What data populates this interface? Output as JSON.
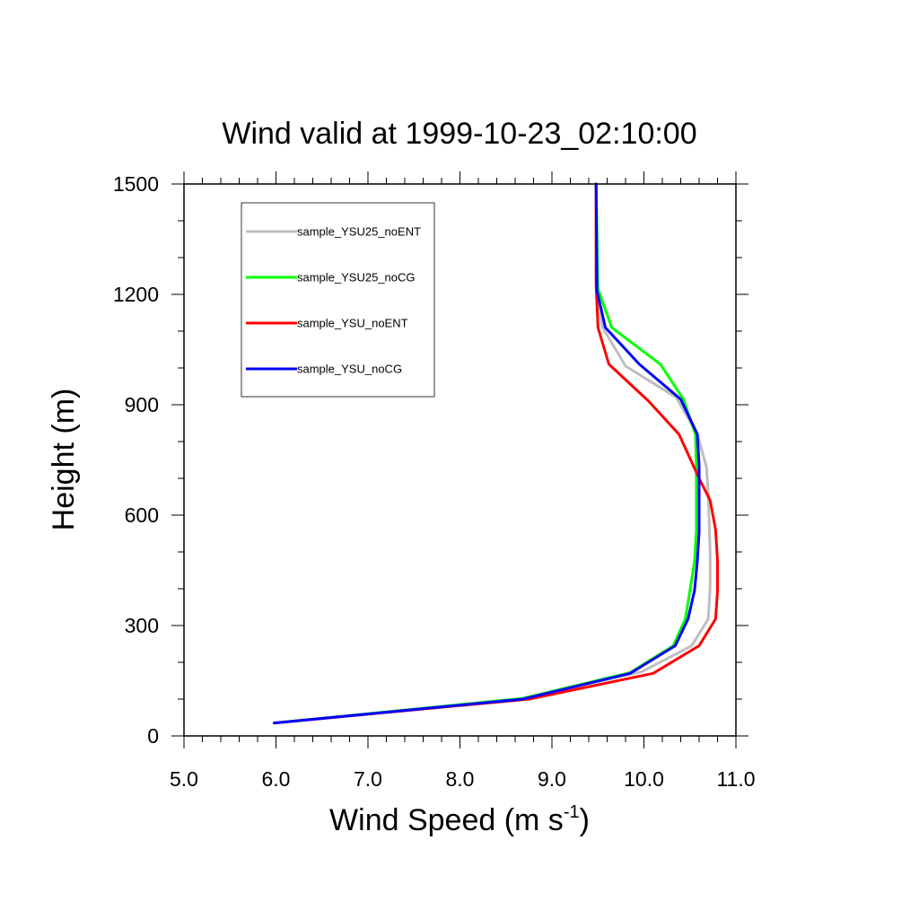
{
  "chart_data": {
    "type": "line",
    "title": "Wind valid at 1999-10-23_02:10:00",
    "xlabel": {
      "base": "Wind Speed (m s",
      "sup": "-1",
      "tail": ")"
    },
    "ylabel": "Height (m)",
    "xlim": [
      5.0,
      11.0
    ],
    "ylim": [
      0,
      1500
    ],
    "xticks": [
      5.0,
      6.0,
      7.0,
      8.0,
      9.0,
      10.0,
      11.0
    ],
    "xtick_labels": [
      "5.0",
      "6.0",
      "7.0",
      "8.0",
      "9.0",
      "10.0",
      "11.0"
    ],
    "yticks": [
      0,
      300,
      600,
      900,
      1200,
      1500
    ],
    "ytick_labels": [
      "0",
      "300",
      "600",
      "900",
      "1200",
      "1500"
    ],
    "grid": false,
    "legend_placement": "top-left",
    "series": [
      {
        "name": "sample_YSU25_noENT",
        "color": "#bebebe",
        "points": [
          [
            5.98,
            35
          ],
          [
            8.7,
            102
          ],
          [
            9.98,
            175
          ],
          [
            10.52,
            245
          ],
          [
            10.7,
            318
          ],
          [
            10.72,
            405
          ],
          [
            10.72,
            495
          ],
          [
            10.71,
            575
          ],
          [
            10.7,
            655
          ],
          [
            10.68,
            730
          ],
          [
            10.58,
            820
          ],
          [
            10.35,
            920
          ],
          [
            9.8,
            1005
          ],
          [
            9.55,
            1110
          ],
          [
            9.48,
            1225
          ],
          [
            9.48,
            1500
          ]
        ]
      },
      {
        "name": "sample_YSU25_noCG",
        "color": "#00ff00",
        "points": [
          [
            5.98,
            35
          ],
          [
            8.68,
            102
          ],
          [
            9.85,
            172
          ],
          [
            10.32,
            245
          ],
          [
            10.45,
            318
          ],
          [
            10.5,
            395
          ],
          [
            10.55,
            475
          ],
          [
            10.57,
            555
          ],
          [
            10.57,
            640
          ],
          [
            10.57,
            735
          ],
          [
            10.56,
            820
          ],
          [
            10.43,
            915
          ],
          [
            10.18,
            1010
          ],
          [
            9.65,
            1110
          ],
          [
            9.5,
            1215
          ],
          [
            9.48,
            1500
          ]
        ]
      },
      {
        "name": "sample_YSU_noENT",
        "color": "#ff0000",
        "points": [
          [
            5.98,
            35
          ],
          [
            8.75,
            100
          ],
          [
            10.1,
            170
          ],
          [
            10.6,
            245
          ],
          [
            10.78,
            318
          ],
          [
            10.8,
            395
          ],
          [
            10.8,
            475
          ],
          [
            10.78,
            560
          ],
          [
            10.72,
            640
          ],
          [
            10.6,
            700
          ],
          [
            10.38,
            820
          ],
          [
            10.05,
            910
          ],
          [
            9.62,
            1010
          ],
          [
            9.5,
            1110
          ],
          [
            9.48,
            1225
          ],
          [
            9.48,
            1500
          ]
        ]
      },
      {
        "name": "sample_YSU_noCG",
        "color": "#0000ff",
        "points": [
          [
            5.98,
            35
          ],
          [
            8.68,
            100
          ],
          [
            9.85,
            170
          ],
          [
            10.34,
            245
          ],
          [
            10.48,
            318
          ],
          [
            10.55,
            395
          ],
          [
            10.58,
            475
          ],
          [
            10.6,
            555
          ],
          [
            10.6,
            640
          ],
          [
            10.6,
            735
          ],
          [
            10.58,
            820
          ],
          [
            10.4,
            915
          ],
          [
            9.95,
            1010
          ],
          [
            9.58,
            1110
          ],
          [
            9.49,
            1210
          ],
          [
            9.48,
            1500
          ]
        ]
      }
    ]
  }
}
